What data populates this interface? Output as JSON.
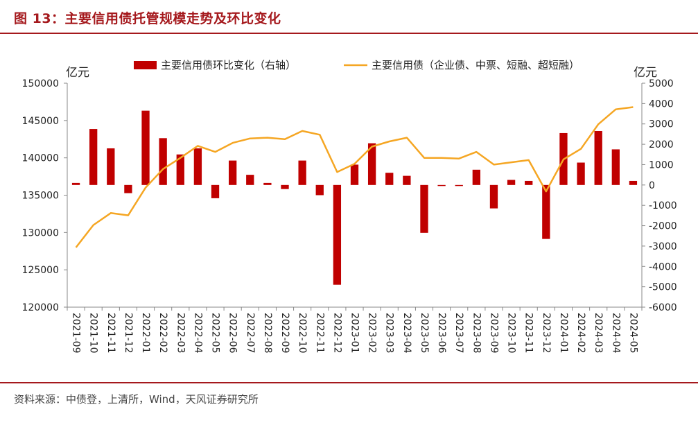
{
  "figure_title": "图 13：主要信用债托管规模走势及环比变化",
  "source_note": "资料来源：中债登，上清所，Wind，天风证券研究所",
  "colors": {
    "bar": "#c00000",
    "line": "#f5a623",
    "accent": "#a5191d"
  },
  "chart_data": {
    "type": "bar+line",
    "left_axis_unit": "亿元",
    "right_axis_unit": "亿元",
    "left_ylim": [
      120000,
      150000
    ],
    "left_ticks": [
      "150000",
      "145000",
      "140000",
      "135000",
      "130000",
      "125000",
      "120000"
    ],
    "right_ylim": [
      -6000,
      5000
    ],
    "right_ticks": [
      "5000",
      "4000",
      "3000",
      "2000",
      "1000",
      "0",
      "-1000",
      "-2000",
      "-3000",
      "-4000",
      "-5000",
      "-6000"
    ],
    "categories": [
      "2021-09",
      "2021-10",
      "2021-11",
      "2021-12",
      "2022-01",
      "2022-02",
      "2022-03",
      "2022-04",
      "2022-05",
      "2022-06",
      "2022-07",
      "2022-08",
      "2022-09",
      "2022-10",
      "2022-11",
      "2022-12",
      "2023-01",
      "2023-02",
      "2023-03",
      "2023-04",
      "2023-05",
      "2023-06",
      "2023-07",
      "2023-08",
      "2023-09",
      "2023-10",
      "2023-11",
      "2023-12",
      "2024-01",
      "2024-02",
      "2024-03",
      "2024-04",
      "2024-05"
    ],
    "series": [
      {
        "name": "主要信用债环比变化（右轴）",
        "type": "bar",
        "axis": "right",
        "values": [
          100,
          2750,
          1800,
          -400,
          3650,
          2300,
          1500,
          1800,
          -650,
          1200,
          500,
          100,
          -200,
          1200,
          -500,
          -4900,
          1000,
          2050,
          600,
          450,
          -2350,
          -50,
          -50,
          750,
          -1150,
          250,
          200,
          -2650,
          2550,
          1100,
          2650,
          1750,
          200
        ]
      },
      {
        "name": "主要信用债（企业债、中票、短融、超短融）",
        "type": "line",
        "axis": "left",
        "values": [
          128000,
          131000,
          132600,
          132300,
          136000,
          138500,
          140000,
          141600,
          140800,
          142000,
          142600,
          142700,
          142500,
          143600,
          143100,
          138100,
          139200,
          141500,
          142200,
          142700,
          140000,
          140000,
          139900,
          140800,
          139100,
          139400,
          139700,
          135500,
          139800,
          141200,
          144500,
          146500,
          146800
        ]
      }
    ]
  }
}
